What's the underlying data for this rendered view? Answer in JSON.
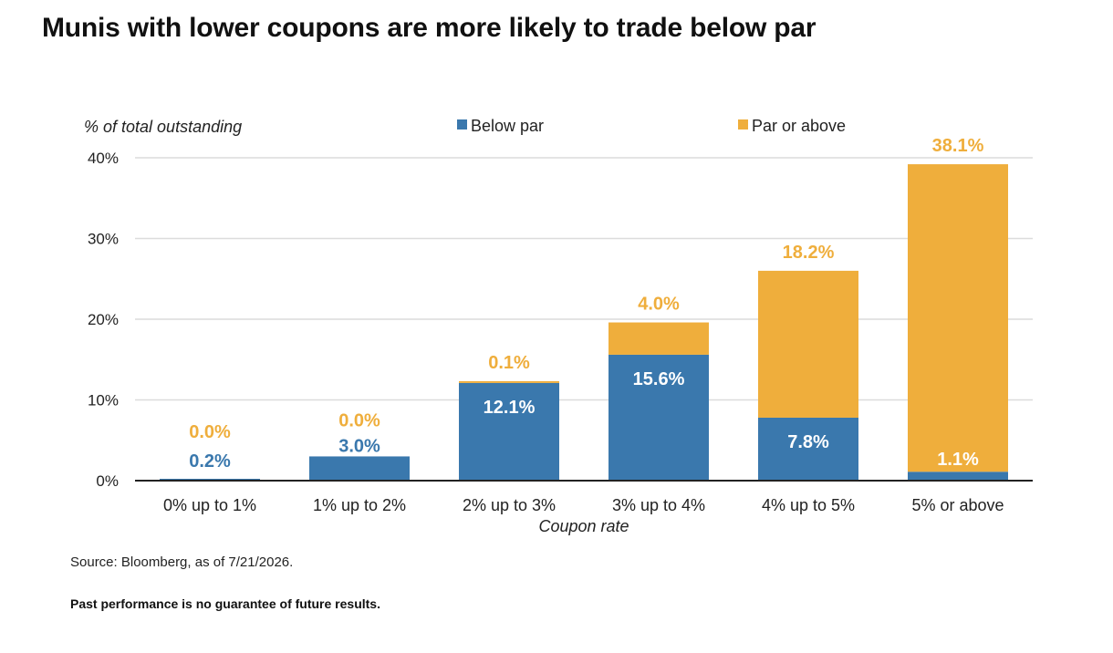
{
  "page": {
    "title": "Munis with lower coupons are more likely to trade below par",
    "source": "Source: Bloomberg, as of 7/21/2026.",
    "disclaimer": "Past performance is no guarantee of future results."
  },
  "colors": {
    "below_par": "#3a78ad",
    "par_or_above": "#efae3c",
    "below_par_label_outside": "#3a78ad",
    "label_inside": "#ffffff",
    "gridline": "#dcdcdc",
    "axis": "#222222"
  },
  "chart_data": {
    "type": "bar",
    "stacked": true,
    "title": "Munis with lower coupons are more likely to trade below par",
    "xlabel": "Coupon rate",
    "ylabel": "% of total outstanding",
    "ylim": [
      0,
      40
    ],
    "yticks": [
      0,
      10,
      20,
      30,
      40
    ],
    "ytick_labels": [
      "0%",
      "10%",
      "20%",
      "30%",
      "40%"
    ],
    "grid": true,
    "legend_position": "top",
    "categories": [
      "0% up to 1%",
      "1% up to 2%",
      "2% up to 3%",
      "3% up to 4%",
      "4% up to 5%",
      "5% or above"
    ],
    "series": [
      {
        "name": "Below par",
        "values": [
          0.2,
          3.0,
          12.1,
          15.6,
          7.8,
          1.1
        ],
        "data_labels": [
          "0.2%",
          "3.0%",
          "12.1%",
          "15.6%",
          "7.8%",
          "1.1%"
        ]
      },
      {
        "name": "Par or above",
        "values": [
          0.0,
          0.0,
          0.1,
          4.0,
          18.2,
          38.1
        ],
        "data_labels": [
          "0.0%",
          "0.0%",
          "0.1%",
          "4.0%",
          "18.2%",
          "38.1%"
        ]
      }
    ]
  }
}
